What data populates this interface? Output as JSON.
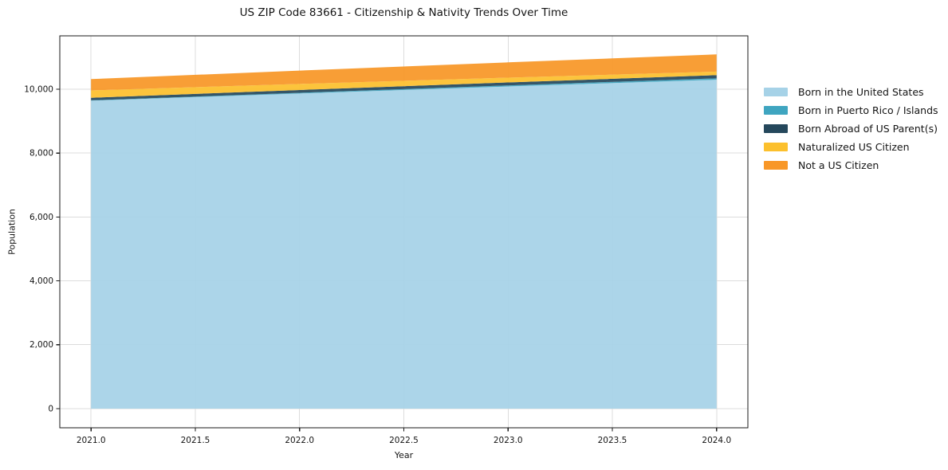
{
  "title": "US ZIP Code 83661 - Citizenship & Nativity Trends Over Time",
  "chart_data": {
    "type": "area",
    "stacked": true,
    "title": "US ZIP Code 83661 - Citizenship & Nativity Trends Over Time",
    "xlabel": "Year",
    "ylabel": "Population",
    "x": [
      2021,
      2022,
      2023,
      2024
    ],
    "series": [
      {
        "name": "Born in the United States",
        "color": "#A6D2E7",
        "values": [
          9640,
          9865,
          10085,
          10295
        ]
      },
      {
        "name": "Born in Puerto Rico / Islands",
        "color": "#3FA5C0",
        "values": [
          12,
          23,
          34,
          45
        ]
      },
      {
        "name": "Born Abroad of US Parent(s)",
        "color": "#25485C",
        "values": [
          80,
          87,
          93,
          100
        ]
      },
      {
        "name": "Naturalized US Citizen",
        "color": "#FCC02D",
        "values": [
          230,
          190,
          150,
          110
        ]
      },
      {
        "name": "Not a US Citizen",
        "color": "#F89727",
        "values": [
          355,
          417,
          478,
          540
        ]
      }
    ],
    "totals": [
      10317,
      10582,
      10840,
      11090
    ],
    "xlim": [
      2020.85,
      2024.15
    ],
    "ylim": [
      -600,
      11670
    ],
    "xticks": {
      "values": [
        2021.0,
        2021.5,
        2022.0,
        2022.5,
        2023.0,
        2023.5,
        2024.0
      ],
      "labels": [
        "2021.0",
        "2021.5",
        "2022.0",
        "2022.5",
        "2023.0",
        "2023.5",
        "2024.0"
      ]
    },
    "yticks": {
      "values": [
        0,
        2000,
        4000,
        6000,
        8000,
        10000
      ],
      "labels": [
        "0",
        "2,000",
        "4,000",
        "6,000",
        "8,000",
        "10,000"
      ]
    },
    "grid": true,
    "legend_position": "right"
  },
  "colors": {
    "background": "#ffffff",
    "grid": "#dcdcdc",
    "spine": "#1a1a1a",
    "tick": "#1a1a1a",
    "text": "#141414"
  }
}
